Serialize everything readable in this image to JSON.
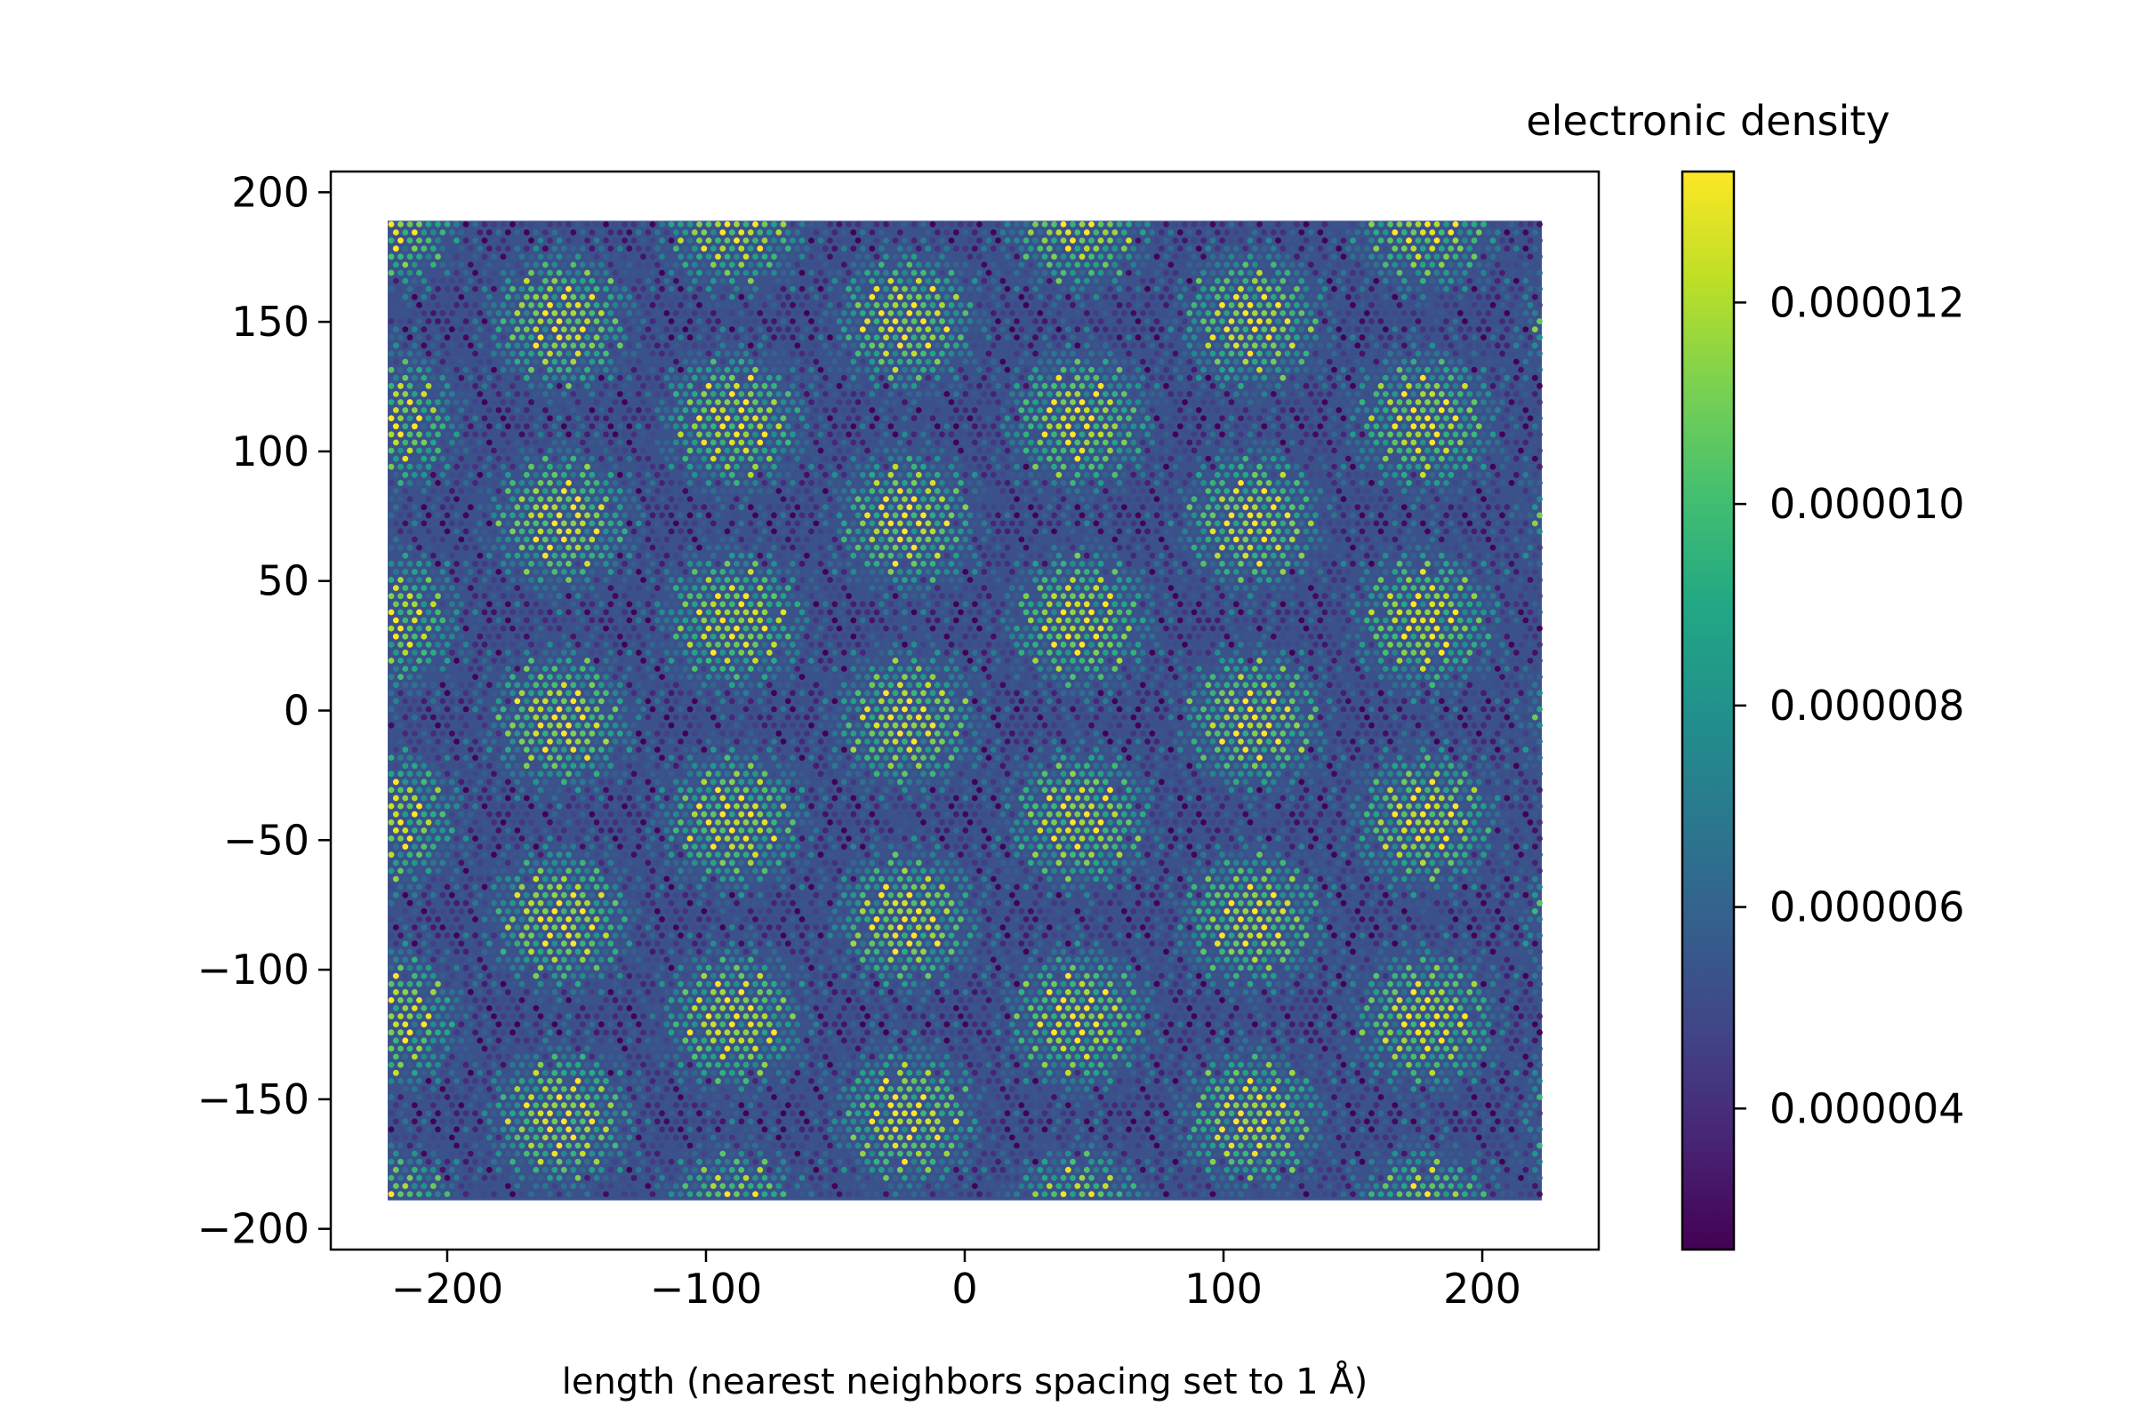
{
  "chart_data": {
    "type": "heatmap",
    "title": "",
    "xlabel": "length (nearest neighbors spacing set to 1 Å)",
    "ylabel": "",
    "xlim": [
      -245,
      245
    ],
    "ylim": [
      -208,
      208
    ],
    "x_ticks": [
      -200,
      -100,
      0,
      100,
      200
    ],
    "x_tick_labels": [
      "−200",
      "−100",
      "0",
      "100",
      "200"
    ],
    "y_ticks": [
      200,
      150,
      100,
      50,
      0,
      -50,
      -100,
      -150,
      -200
    ],
    "y_tick_labels": [
      "200",
      "150",
      "100",
      "50",
      "0",
      "−50",
      "−100",
      "−150",
      "−200"
    ],
    "data_extent": {
      "x": [
        -223,
        223
      ],
      "y": [
        -189,
        189
      ]
    },
    "colormap": "viridis",
    "colorbar": {
      "title": "electronic density",
      "range": [
        2.6e-06,
        1.33e-05
      ],
      "ticks": [
        1.2e-05,
        1e-05,
        8e-06,
        6e-06,
        4e-06
      ],
      "tick_labels": [
        "0.000012",
        "0.000010",
        "0.000008",
        "0.000006",
        "0.000004"
      ]
    },
    "grid": false
  }
}
